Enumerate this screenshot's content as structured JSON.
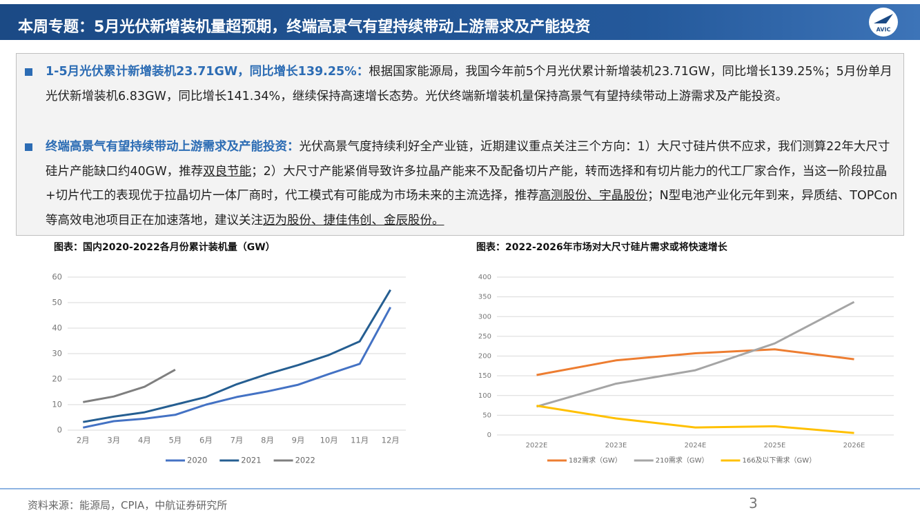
{
  "header": {
    "title": "本周专题：5月光伏新增装机量超预期，终端高景气有望持续带动上游需求及产能投资",
    "logo": "AVIC"
  },
  "bullets": [
    {
      "lead": "1-5月光伏累计新增装机23.71GW，同比增长139.25%：",
      "runs": [
        {
          "text": "根据国家能源局，我国今年前5个月光伏累计新增装机23.71GW，同比增长139.25%；5月份单月光伏新增装机6.83GW，同比增长141.34%，继续保持高速增长态势。光伏终端新增装机量保持高景气有望持续带动上游需求及产能投资。",
          "underline": false
        }
      ]
    },
    {
      "lead": "终端高景气有望持续带动上游需求及产能投资：",
      "runs": [
        {
          "text": "光伏高景气度持续利好全产业链，近期建议重点关注三个方向：1）大尺寸硅片供不应求，我们测算22年大尺寸硅片产能缺口约40GW，推荐",
          "underline": false
        },
        {
          "text": "双良节能",
          "underline": true
        },
        {
          "text": "；2）大尺寸产能紧俏导致许多拉晶产能来不及配备切片产能，转而选择和有切片能力的代工厂家合作，当这一阶段拉晶+切片代工的表现优于拉晶切片一体厂商时，代工模式有可能成为市场未来的主流选择，推荐",
          "underline": false
        },
        {
          "text": "高测股份、宇晶股份",
          "underline": true
        },
        {
          "text": "；N型电池产业化元年到来，异质结、TOPCon等高效电池项目正在加速落地，建议关注",
          "underline": false
        },
        {
          "text": "迈为股份、捷佳伟创、金辰股份。",
          "underline": true
        }
      ]
    }
  ],
  "chart_data": [
    {
      "type": "line",
      "title": "图表：国内2020-2022各月份累计装机量（GW）",
      "categories": [
        "2月",
        "3月",
        "4月",
        "5月",
        "6月",
        "7月",
        "8月",
        "9月",
        "10月",
        "11月",
        "12月"
      ],
      "ylim": [
        0,
        60
      ],
      "yticks": [
        0,
        10,
        20,
        30,
        40,
        50,
        60
      ],
      "grid": true,
      "series": [
        {
          "name": "2020",
          "color": "#4472c4",
          "values": [
            1,
            3.5,
            4.5,
            6,
            10,
            13,
            15.2,
            17.8,
            22,
            26,
            48.2
          ]
        },
        {
          "name": "2021",
          "color": "#255e91",
          "values": [
            3.2,
            5.3,
            7,
            10,
            13,
            18,
            22,
            25.5,
            29.5,
            34.8,
            55
          ]
        },
        {
          "name": "2022",
          "color": "#7f7f7f",
          "values": [
            11,
            13.2,
            17,
            23.7,
            null,
            null,
            null,
            null,
            null,
            null,
            null
          ]
        }
      ]
    },
    {
      "type": "line",
      "title": "图表：2022-2026年市场对大尺寸硅片需求或将快速增长",
      "categories": [
        "2022E",
        "2023E",
        "2024E",
        "2025E",
        "2026E"
      ],
      "ylim": [
        0,
        400
      ],
      "yticks": [
        0,
        50,
        100,
        150,
        200,
        250,
        300,
        350,
        400
      ],
      "grid": true,
      "series": [
        {
          "name": "182需求（GW）",
          "color": "#ed7d31",
          "values": [
            152,
            189,
            207,
            217,
            192
          ]
        },
        {
          "name": "210需求（GW）",
          "color": "#a5a5a5",
          "values": [
            72,
            130,
            164,
            232,
            337
          ]
        },
        {
          "name": "166及以下需求（GW）",
          "color": "#ffc000",
          "values": [
            74,
            42,
            19,
            22,
            5
          ]
        }
      ]
    }
  ],
  "footer": {
    "source": "资料来源：能源局，CPIA，中航证券研究所",
    "page": "3"
  }
}
